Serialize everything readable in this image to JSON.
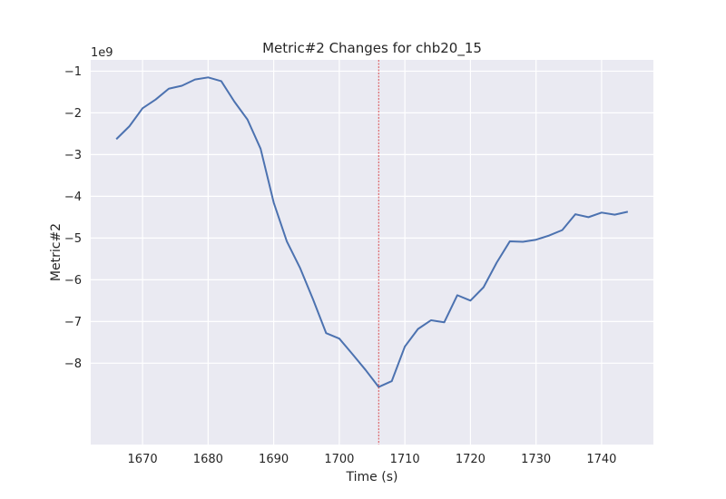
{
  "chart_data": {
    "type": "line",
    "title": "Metric#2 Changes for chb20_15",
    "xlabel": "Time (s)",
    "ylabel": "Metric#2",
    "y_scale_label": "1e9",
    "xlim": [
      1662.1,
      1747.9
    ],
    "ylim": [
      -9.95,
      -0.73
    ],
    "x_ticks": [
      1670,
      1680,
      1690,
      1700,
      1710,
      1720,
      1730,
      1740
    ],
    "y_ticks": [
      -8,
      -7,
      -6,
      -5,
      -4,
      -3,
      -2,
      -1
    ],
    "grid": true,
    "background_color": "#eaeaf2",
    "line_color": "#4c72b0",
    "marker_line": {
      "x": 1706,
      "color": "#d62728",
      "style": "dashed"
    },
    "series": [
      {
        "x": [
          1666,
          1668,
          1670,
          1672,
          1674,
          1676,
          1678,
          1680,
          1682,
          1684,
          1686,
          1688,
          1690,
          1692,
          1694,
          1696,
          1698,
          1700,
          1702,
          1704,
          1706,
          1708,
          1710,
          1712,
          1714,
          1716,
          1718,
          1720,
          1722,
          1724,
          1726,
          1728,
          1730,
          1732,
          1734,
          1736,
          1738,
          1740,
          1742,
          1744
        ],
        "y": [
          -2.63,
          -2.32,
          -1.89,
          -1.68,
          -1.42,
          -1.35,
          -1.2,
          -1.15,
          -1.24,
          -1.73,
          -2.16,
          -2.86,
          -4.15,
          -5.08,
          -5.71,
          -6.47,
          -7.28,
          -7.41,
          -7.78,
          -8.16,
          -8.57,
          -8.43,
          -7.6,
          -7.18,
          -6.97,
          -7.02,
          -6.37,
          -6.5,
          -6.18,
          -5.59,
          -5.08,
          -5.09,
          -5.04,
          -4.94,
          -4.81,
          -4.43,
          -4.5,
          -4.39,
          -4.44,
          -4.37
        ]
      }
    ]
  }
}
